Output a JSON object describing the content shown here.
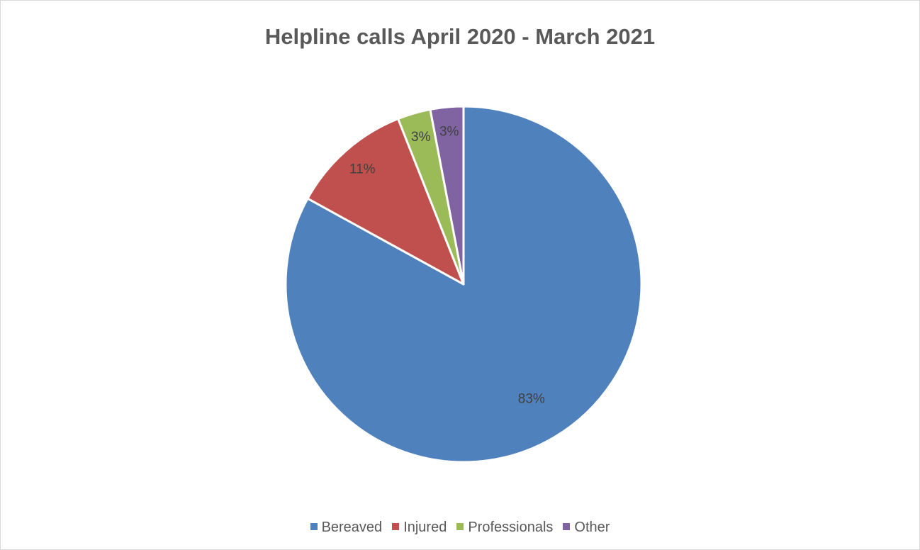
{
  "chart_data": {
    "type": "pie",
    "title": "Helpline calls April 2020 - March 2021",
    "categories": [
      "Bereaved",
      "Injured",
      "Professionals",
      "Other"
    ],
    "values": [
      83,
      11,
      3,
      3
    ],
    "data_labels": [
      "83%",
      "11%",
      "3%",
      "3%"
    ],
    "colors": [
      "#4f81bd",
      "#c0504d",
      "#9bbb59",
      "#8064a2"
    ],
    "start_angle_deg": 0,
    "direction": "clockwise",
    "legend_position": "bottom"
  }
}
